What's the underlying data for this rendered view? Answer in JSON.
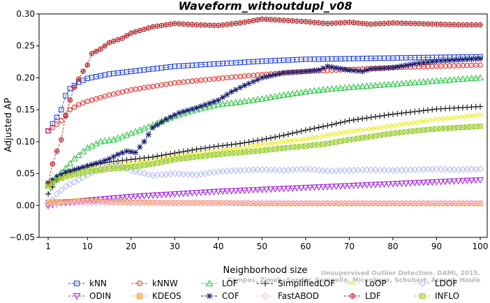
{
  "chart_data": {
    "type": "line",
    "title": "Waveform_withoutdupl_v08",
    "xlabel": "Neighborhood size",
    "ylabel": "Adjusted AP",
    "xlim": [
      1,
      100
    ],
    "ylim": [
      -0.05,
      0.3
    ],
    "xticks": [
      1,
      10,
      20,
      30,
      40,
      50,
      60,
      70,
      80,
      90,
      100
    ],
    "yticks": [
      -0.05,
      0.0,
      0.05,
      0.1,
      0.15,
      0.2,
      0.25,
      0.3
    ],
    "ytick_labels": [
      "−0.05",
      "0.00",
      "0.05",
      "0.10",
      "0.15",
      "0.20",
      "0.25",
      "0.30"
    ],
    "grid": false,
    "legend_position": "bottom",
    "series": [
      {
        "name": "kNN",
        "color": "#1f3fd6",
        "marker": "square",
        "points": [
          [
            1,
            0.117
          ],
          [
            2,
            0.128
          ],
          [
            3,
            0.138
          ],
          [
            4,
            0.15
          ],
          [
            5,
            0.172
          ],
          [
            6,
            0.183
          ],
          [
            8,
            0.193
          ],
          [
            10,
            0.199
          ],
          [
            15,
            0.206
          ],
          [
            20,
            0.21
          ],
          [
            30,
            0.218
          ],
          [
            40,
            0.222
          ],
          [
            50,
            0.226
          ],
          [
            60,
            0.229
          ],
          [
            70,
            0.23
          ],
          [
            80,
            0.231
          ],
          [
            90,
            0.232
          ],
          [
            100,
            0.233
          ]
        ]
      },
      {
        "name": "kNNW",
        "color": "#e0312b",
        "marker": "circle",
        "points": [
          [
            1,
            0.117
          ],
          [
            2,
            0.122
          ],
          [
            4,
            0.133
          ],
          [
            6,
            0.15
          ],
          [
            8,
            0.158
          ],
          [
            10,
            0.163
          ],
          [
            15,
            0.173
          ],
          [
            20,
            0.181
          ],
          [
            30,
            0.192
          ],
          [
            40,
            0.199
          ],
          [
            50,
            0.205
          ],
          [
            60,
            0.21
          ],
          [
            70,
            0.213
          ],
          [
            80,
            0.216
          ],
          [
            90,
            0.218
          ],
          [
            100,
            0.22
          ]
        ]
      },
      {
        "name": "LOF",
        "color": "#33c84a",
        "marker": "triangle-up",
        "points": [
          [
            1,
            0.033
          ],
          [
            3,
            0.045
          ],
          [
            5,
            0.058
          ],
          [
            7,
            0.073
          ],
          [
            10,
            0.09
          ],
          [
            13,
            0.1
          ],
          [
            16,
            0.103
          ],
          [
            20,
            0.113
          ],
          [
            25,
            0.126
          ],
          [
            30,
            0.14
          ],
          [
            35,
            0.15
          ],
          [
            40,
            0.158
          ],
          [
            45,
            0.162
          ],
          [
            50,
            0.167
          ],
          [
            55,
            0.173
          ],
          [
            60,
            0.178
          ],
          [
            65,
            0.182
          ],
          [
            70,
            0.185
          ],
          [
            80,
            0.19
          ],
          [
            90,
            0.195
          ],
          [
            100,
            0.2
          ]
        ]
      },
      {
        "name": "SimplifiedLOF",
        "color": "#111111",
        "marker": "plus",
        "points": [
          [
            1,
            0.018
          ],
          [
            3,
            0.04
          ],
          [
            5,
            0.05
          ],
          [
            8,
            0.057
          ],
          [
            10,
            0.062
          ],
          [
            15,
            0.068
          ],
          [
            20,
            0.072
          ],
          [
            25,
            0.076
          ],
          [
            30,
            0.082
          ],
          [
            35,
            0.088
          ],
          [
            40,
            0.093
          ],
          [
            45,
            0.097
          ],
          [
            50,
            0.103
          ],
          [
            55,
            0.11
          ],
          [
            60,
            0.118
          ],
          [
            65,
            0.125
          ],
          [
            70,
            0.133
          ],
          [
            75,
            0.138
          ],
          [
            80,
            0.143
          ],
          [
            85,
            0.147
          ],
          [
            90,
            0.151
          ],
          [
            95,
            0.153
          ],
          [
            100,
            0.155
          ]
        ]
      },
      {
        "name": "LoOP",
        "color": "#eded1a",
        "marker": "x",
        "points": [
          [
            1,
            0.03
          ],
          [
            3,
            0.04
          ],
          [
            5,
            0.048
          ],
          [
            10,
            0.058
          ],
          [
            15,
            0.063
          ],
          [
            20,
            0.065
          ],
          [
            25,
            0.07
          ],
          [
            30,
            0.076
          ],
          [
            35,
            0.081
          ],
          [
            40,
            0.085
          ],
          [
            45,
            0.09
          ],
          [
            50,
            0.095
          ],
          [
            55,
            0.1
          ],
          [
            60,
            0.104
          ],
          [
            65,
            0.11
          ],
          [
            70,
            0.116
          ],
          [
            75,
            0.12
          ],
          [
            80,
            0.125
          ],
          [
            85,
            0.13
          ],
          [
            90,
            0.135
          ],
          [
            95,
            0.138
          ],
          [
            100,
            0.142
          ]
        ]
      },
      {
        "name": "LDOF",
        "color": "#b7bff0",
        "marker": "diamond",
        "points": [
          [
            1,
            0.0
          ],
          [
            3,
            0.018
          ],
          [
            5,
            0.03
          ],
          [
            8,
            0.04
          ],
          [
            10,
            0.048
          ],
          [
            14,
            0.06
          ],
          [
            17,
            0.064
          ],
          [
            20,
            0.055
          ],
          [
            25,
            0.047
          ],
          [
            30,
            0.05
          ],
          [
            35,
            0.048
          ],
          [
            40,
            0.053
          ],
          [
            45,
            0.055
          ],
          [
            50,
            0.056
          ],
          [
            55,
            0.055
          ],
          [
            60,
            0.057
          ],
          [
            65,
            0.054
          ],
          [
            70,
            0.055
          ],
          [
            75,
            0.056
          ],
          [
            80,
            0.055
          ],
          [
            85,
            0.056
          ],
          [
            90,
            0.057
          ],
          [
            95,
            0.056
          ],
          [
            100,
            0.057
          ]
        ]
      },
      {
        "name": "ODIN",
        "color": "#a32bd8",
        "marker": "triangle-down",
        "points": [
          [
            1,
            0.0
          ],
          [
            5,
            0.005
          ],
          [
            10,
            0.008
          ],
          [
            15,
            0.011
          ],
          [
            20,
            0.014
          ],
          [
            30,
            0.018
          ],
          [
            40,
            0.022
          ],
          [
            50,
            0.025
          ],
          [
            60,
            0.028
          ],
          [
            70,
            0.031
          ],
          [
            80,
            0.034
          ],
          [
            90,
            0.037
          ],
          [
            100,
            0.04
          ]
        ]
      },
      {
        "name": "KDEOS",
        "color": "#f0a020",
        "marker": "square-x",
        "points": [
          [
            1,
            0.005
          ],
          [
            5,
            0.006
          ],
          [
            10,
            0.007
          ],
          [
            15,
            0.006
          ],
          [
            20,
            0.005
          ],
          [
            30,
            0.004
          ],
          [
            40,
            0.004
          ],
          [
            50,
            0.003
          ],
          [
            60,
            0.003
          ],
          [
            70,
            0.003
          ],
          [
            80,
            0.003
          ],
          [
            90,
            0.003
          ],
          [
            100,
            0.003
          ]
        ]
      },
      {
        "name": "COF",
        "color": "#151a6e",
        "marker": "asterisk",
        "points": [
          [
            1,
            0.035
          ],
          [
            3,
            0.045
          ],
          [
            5,
            0.052
          ],
          [
            8,
            0.058
          ],
          [
            10,
            0.062
          ],
          [
            13,
            0.068
          ],
          [
            15,
            0.073
          ],
          [
            17,
            0.08
          ],
          [
            19,
            0.085
          ],
          [
            21,
            0.083
          ],
          [
            23,
            0.1
          ],
          [
            25,
            0.122
          ],
          [
            28,
            0.135
          ],
          [
            31,
            0.145
          ],
          [
            35,
            0.153
          ],
          [
            40,
            0.165
          ],
          [
            43,
            0.178
          ],
          [
            46,
            0.188
          ],
          [
            50,
            0.2
          ],
          [
            55,
            0.208
          ],
          [
            60,
            0.21
          ],
          [
            63,
            0.212
          ],
          [
            65,
            0.218
          ],
          [
            70,
            0.212
          ],
          [
            73,
            0.21
          ],
          [
            75,
            0.214
          ],
          [
            80,
            0.216
          ],
          [
            85,
            0.222
          ],
          [
            90,
            0.226
          ],
          [
            95,
            0.228
          ],
          [
            100,
            0.23
          ]
        ]
      },
      {
        "name": "FastABOD",
        "color": "#f4b6ef",
        "marker": "diamond",
        "points": [
          [
            1,
            0.003
          ],
          [
            10,
            0.004
          ],
          [
            20,
            0.004
          ],
          [
            30,
            0.004
          ],
          [
            40,
            0.004
          ],
          [
            50,
            0.004
          ],
          [
            60,
            0.004
          ],
          [
            70,
            0.004
          ],
          [
            80,
            0.004
          ],
          [
            90,
            0.004
          ],
          [
            100,
            0.004
          ]
        ]
      },
      {
        "name": "LDF",
        "color": "#b5262a",
        "marker": "circle-plus",
        "points": [
          [
            1,
            0.035
          ],
          [
            2,
            0.065
          ],
          [
            3,
            0.085
          ],
          [
            4,
            0.103
          ],
          [
            5,
            0.14
          ],
          [
            6,
            0.165
          ],
          [
            7,
            0.185
          ],
          [
            8,
            0.198
          ],
          [
            9,
            0.21
          ],
          [
            10,
            0.22
          ],
          [
            11,
            0.238
          ],
          [
            13,
            0.245
          ],
          [
            15,
            0.255
          ],
          [
            18,
            0.262
          ],
          [
            20,
            0.27
          ],
          [
            25,
            0.28
          ],
          [
            30,
            0.285
          ],
          [
            35,
            0.283
          ],
          [
            40,
            0.282
          ],
          [
            45,
            0.286
          ],
          [
            50,
            0.292
          ],
          [
            55,
            0.29
          ],
          [
            60,
            0.288
          ],
          [
            65,
            0.285
          ],
          [
            70,
            0.287
          ],
          [
            75,
            0.284
          ],
          [
            80,
            0.286
          ],
          [
            85,
            0.285
          ],
          [
            90,
            0.284
          ],
          [
            95,
            0.283
          ],
          [
            100,
            0.283
          ]
        ]
      },
      {
        "name": "INFLO",
        "color": "#9acd32",
        "marker": "square-x",
        "points": [
          [
            1,
            0.03
          ],
          [
            3,
            0.04
          ],
          [
            5,
            0.045
          ],
          [
            10,
            0.053
          ],
          [
            15,
            0.057
          ],
          [
            20,
            0.06
          ],
          [
            25,
            0.065
          ],
          [
            30,
            0.072
          ],
          [
            35,
            0.076
          ],
          [
            40,
            0.08
          ],
          [
            45,
            0.083
          ],
          [
            50,
            0.086
          ],
          [
            55,
            0.09
          ],
          [
            60,
            0.093
          ],
          [
            65,
            0.097
          ],
          [
            70,
            0.103
          ],
          [
            75,
            0.108
          ],
          [
            80,
            0.113
          ],
          [
            85,
            0.117
          ],
          [
            90,
            0.12
          ],
          [
            95,
            0.122
          ],
          [
            100,
            0.124
          ]
        ]
      }
    ],
    "legend_rows": [
      [
        "kNN",
        "kNNW",
        "LOF",
        "SimplifiedLOF",
        "LoOP",
        "LDOF"
      ],
      [
        "ODIN",
        "KDEOS",
        "COF",
        "FastABOD",
        "LDF",
        "INFLO"
      ]
    ],
    "watermark_lines": [
      "Unsupervised Outlier Detection. DAMI, 2015.",
      "Campos, Zimek, Sander, Campello, Micenkova, Schubert, Assent, Houle"
    ]
  }
}
